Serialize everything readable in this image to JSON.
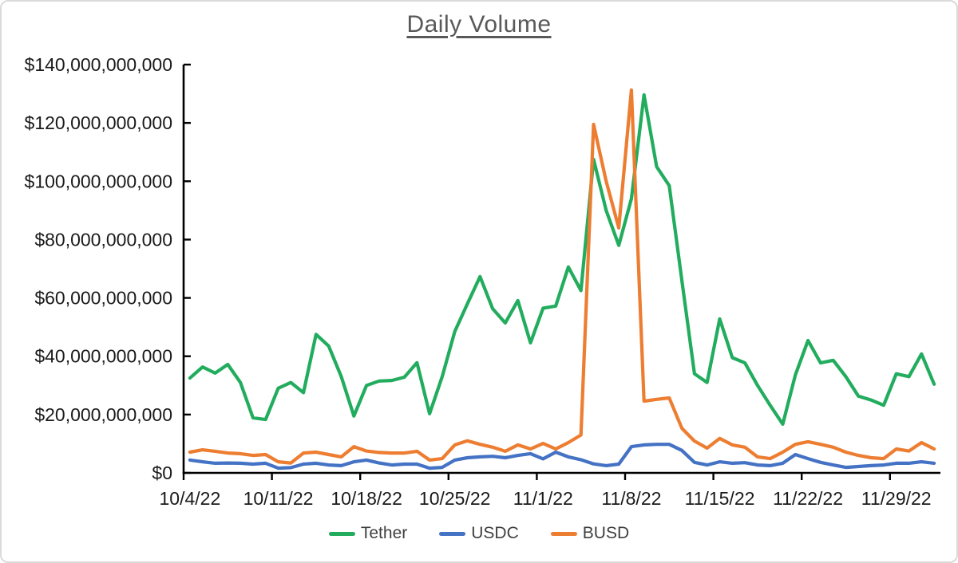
{
  "chart_data": {
    "type": "line",
    "title": "Daily Volume",
    "grid": false,
    "legend_position": "bottom",
    "value_unit": "billion USD",
    "ylim_billion_usd": [
      0,
      140
    ],
    "y_tick_step_billion_usd": 20,
    "y_tick_labels": [
      "$0",
      "$20,000,000,000",
      "$40,000,000,000",
      "$60,000,000,000",
      "$80,000,000,000",
      "$100,000,000,000",
      "$120,000,000,000",
      "$140,000,000,000"
    ],
    "x_tick_labels": [
      "10/4/22",
      "10/11/22",
      "10/18/22",
      "10/25/22",
      "11/1/22",
      "11/8/22",
      "11/15/22",
      "11/22/22",
      "11/29/22"
    ],
    "x": [
      "10/4/22",
      "10/5/22",
      "10/6/22",
      "10/7/22",
      "10/8/22",
      "10/9/22",
      "10/10/22",
      "10/11/22",
      "10/12/22",
      "10/13/22",
      "10/14/22",
      "10/15/22",
      "10/16/22",
      "10/17/22",
      "10/18/22",
      "10/19/22",
      "10/20/22",
      "10/21/22",
      "10/22/22",
      "10/23/22",
      "10/24/22",
      "10/25/22",
      "10/26/22",
      "10/27/22",
      "10/28/22",
      "10/29/22",
      "10/30/22",
      "10/31/22",
      "11/1/22",
      "11/2/22",
      "11/3/22",
      "11/4/22",
      "11/5/22",
      "11/6/22",
      "11/7/22",
      "11/8/22",
      "11/9/22",
      "11/10/22",
      "11/11/22",
      "11/12/22",
      "11/13/22",
      "11/14/22",
      "11/15/22",
      "11/16/22",
      "11/17/22",
      "11/18/22",
      "11/19/22",
      "11/20/22",
      "11/21/22",
      "11/22/22",
      "11/23/22",
      "11/24/22",
      "11/25/22",
      "11/26/22",
      "11/27/22",
      "11/28/22",
      "11/29/22",
      "11/30/22",
      "12/1/22",
      "12/2/22"
    ],
    "series": [
      {
        "name": "Tether",
        "color": "#22AC5E",
        "values_billion_usd": [
          32.5,
          36.3,
          34.2,
          37.2,
          31.0,
          18.9,
          18.3,
          29.0,
          31.0,
          27.5,
          47.5,
          43.5,
          33.0,
          19.5,
          30.0,
          31.5,
          31.7,
          32.8,
          37.8,
          20.3,
          33.0,
          48.5,
          58.0,
          67.3,
          56.3,
          51.4,
          59.1,
          44.6,
          56.5,
          57.2,
          70.6,
          62.5,
          107.5,
          90.0,
          78.0,
          94.0,
          129.6,
          105.0,
          98.5,
          66.0,
          34.0,
          31.0,
          52.8,
          39.5,
          37.7,
          30.0,
          23.2,
          16.7,
          33.6,
          45.4,
          37.7,
          38.6,
          33.0,
          26.3,
          25.0,
          23.2,
          34.0,
          33.0,
          40.8,
          30.4
        ]
      },
      {
        "name": "USDC",
        "color": "#4472C4",
        "values_billion_usd": [
          4.4,
          3.8,
          3.3,
          3.4,
          3.3,
          3.0,
          3.3,
          1.6,
          1.8,
          3.0,
          3.3,
          2.7,
          2.5,
          3.8,
          4.4,
          3.4,
          2.7,
          3.0,
          3.0,
          1.6,
          1.9,
          4.4,
          5.2,
          5.5,
          5.7,
          5.2,
          6.0,
          6.6,
          4.8,
          7.1,
          5.5,
          4.5,
          3.1,
          2.5,
          3.0,
          9.0,
          9.6,
          9.8,
          9.8,
          7.7,
          3.6,
          2.7,
          3.8,
          3.3,
          3.5,
          2.7,
          2.5,
          3.3,
          6.3,
          4.9,
          3.6,
          2.7,
          1.9,
          2.2,
          2.5,
          2.7,
          3.3,
          3.3,
          3.8,
          3.3
        ]
      },
      {
        "name": "BUSD",
        "color": "#ED7D31",
        "values_billion_usd": [
          7.1,
          7.9,
          7.4,
          6.8,
          6.6,
          6.0,
          6.3,
          3.8,
          3.4,
          6.8,
          7.1,
          6.3,
          5.5,
          9.0,
          7.5,
          7.0,
          6.8,
          6.8,
          7.4,
          4.4,
          4.9,
          9.6,
          11.0,
          9.8,
          8.8,
          7.4,
          9.6,
          8.2,
          10.1,
          8.2,
          10.4,
          13.0,
          119.5,
          100.0,
          84.0,
          131.3,
          24.6,
          25.2,
          25.7,
          15.3,
          10.9,
          8.5,
          11.8,
          9.6,
          8.8,
          5.5,
          4.9,
          7.1,
          9.8,
          10.7,
          9.8,
          8.8,
          7.1,
          6.0,
          5.2,
          4.9,
          8.2,
          7.5,
          10.4,
          8.2
        ]
      }
    ],
    "style": {
      "title_color": "#595959",
      "axis_color": "#000000",
      "tick_label_color": "#1a1a1a",
      "legend_text_color": "#404040"
    }
  }
}
